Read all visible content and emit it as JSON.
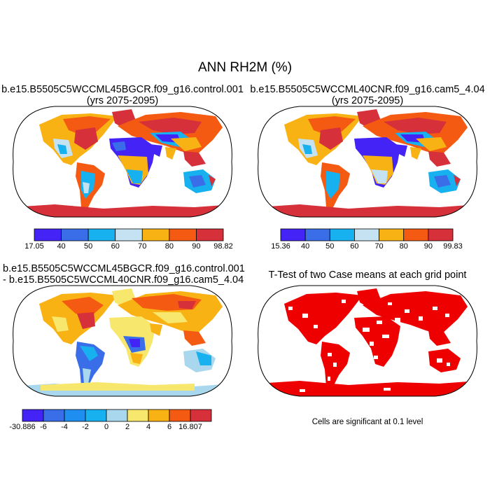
{
  "title": "ANN RH2M (%)",
  "panels": [
    {
      "id": "case1",
      "title_lines": [
        "b.e15.B5505C5WCCML45BGCR.f09_g16.control.001",
        "(yrs 2075-2095)"
      ],
      "colorbar": {
        "colors": [
          "#4323f5",
          "#3a6ee8",
          "#17b1ef",
          "#c4e2f1",
          "#f8b214",
          "#f55a12",
          "#d6303a"
        ],
        "labels": [
          "17.05",
          "40",
          "50",
          "60",
          "70",
          "80",
          "90",
          "98.82"
        ]
      }
    },
    {
      "id": "case2",
      "title_lines": [
        "b.e15.B5505C5WCCML40CNR.f09_g16.cam5_4.04",
        "(yrs 2075-2095)"
      ],
      "colorbar": {
        "colors": [
          "#4323f5",
          "#3a6ee8",
          "#17b1ef",
          "#c4e2f1",
          "#f8b214",
          "#f55a12",
          "#d6303a"
        ],
        "labels": [
          "15.36",
          "40",
          "50",
          "60",
          "70",
          "80",
          "90",
          "99.83"
        ]
      }
    },
    {
      "id": "difference",
      "title_lines": [
        "b.e15.B5505C5WCCML45BGCR.f09_g16.control.001",
        "- b.e15.B5505C5WCCML40CNR.f09_g16.cam5_4.04"
      ],
      "colorbar": {
        "colors": [
          "#4323f5",
          "#3a6ee8",
          "#1e8ff0",
          "#17b1ef",
          "#a9d8ee",
          "#f7e76c",
          "#f8b214",
          "#f55a12",
          "#d6303a"
        ],
        "labels": [
          "-30.886",
          "-6",
          "-4",
          "-2",
          "0",
          "2",
          "4",
          "6",
          "16.807"
        ]
      }
    },
    {
      "id": "ttest",
      "title_lines": [
        "T-Test of two Case means at each grid point"
      ],
      "note": "Cells are significant at 0.1 level"
    }
  ]
}
